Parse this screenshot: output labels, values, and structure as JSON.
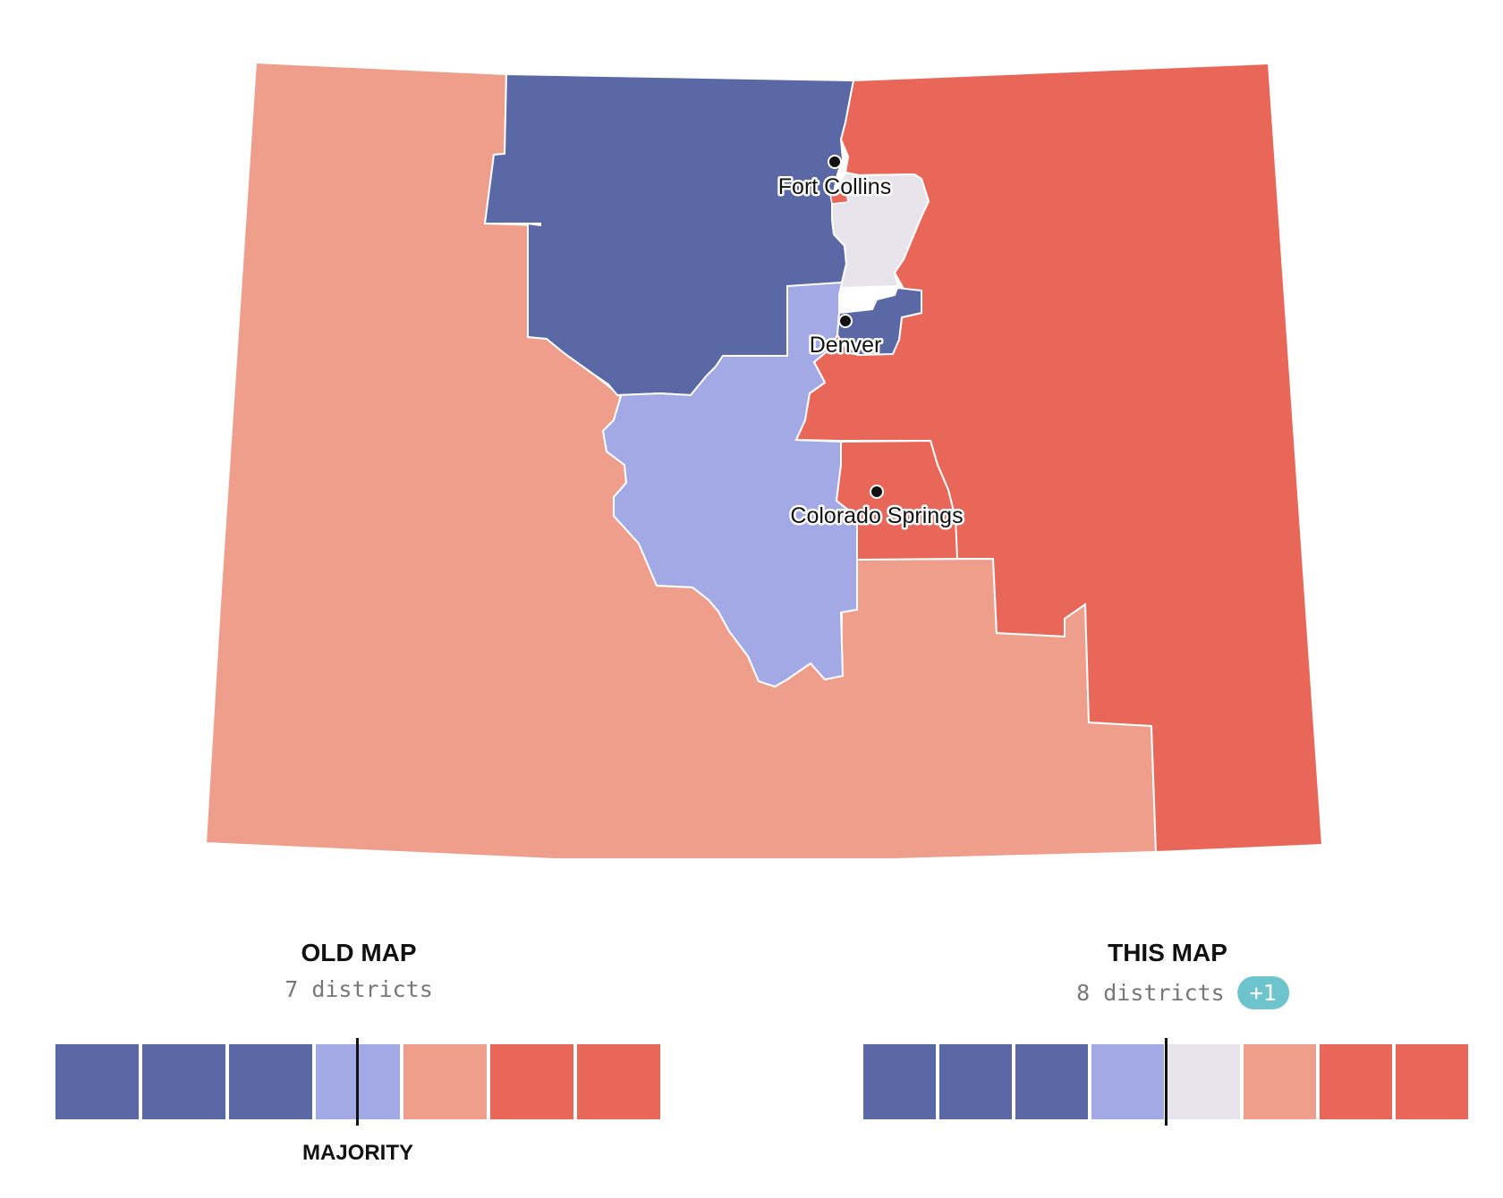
{
  "map": {
    "cities": [
      {
        "name": "Fort Collins"
      },
      {
        "name": "Denver"
      },
      {
        "name": "Colorado Springs"
      }
    ],
    "district_colors": {
      "safe_dem": "#5b68a6",
      "lean_dem": "#a2a9e5",
      "tossup": "#e8e4eb",
      "lean_rep": "#f09e8c",
      "safe_rep": "#e96758"
    }
  },
  "legend": {
    "old": {
      "title": "OLD MAP",
      "subtitle": "7 districts",
      "majority_label": "MAJORITY",
      "seats": [
        "safe_dem",
        "safe_dem",
        "safe_dem",
        "lean_dem",
        "lean_rep",
        "safe_rep",
        "safe_rep"
      ],
      "majority_after_fraction": 0.5
    },
    "new": {
      "title": "THIS MAP",
      "subtitle": "8 districts",
      "delta": "+1",
      "seats": [
        "safe_dem",
        "safe_dem",
        "safe_dem",
        "lean_dem",
        "tossup",
        "lean_rep",
        "safe_rep",
        "safe_rep"
      ],
      "majority_after_fraction": 0.5
    }
  }
}
